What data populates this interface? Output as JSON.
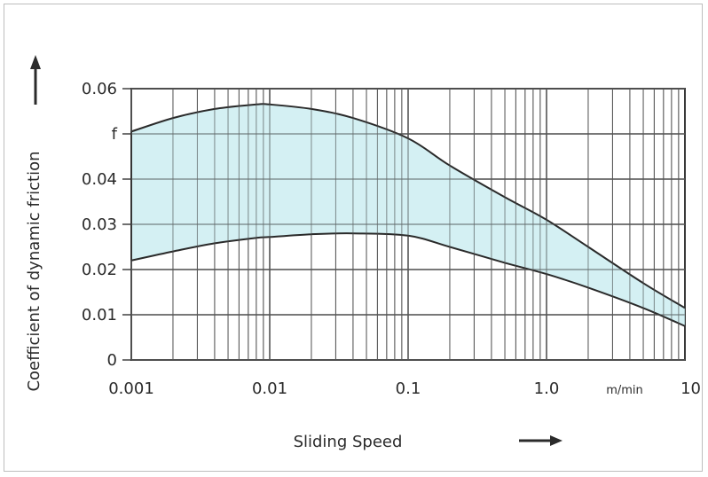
{
  "chart_data": {
    "type": "area",
    "x_scale": "log",
    "xlim": [
      0.001,
      10
    ],
    "ylim": [
      0,
      0.06
    ],
    "grid": true,
    "fill_color": "#c8ecef",
    "line_color": "#2a2a2a",
    "x_ticks": [
      {
        "value": 0.001,
        "label": "0.001"
      },
      {
        "value": 0.01,
        "label": "0.01"
      },
      {
        "value": 0.1,
        "label": "0.1"
      },
      {
        "value": 1,
        "label": "1.0"
      },
      {
        "value": 10,
        "label": "10"
      }
    ],
    "y_ticks": [
      {
        "value": 0,
        "label": "0"
      },
      {
        "value": 0.01,
        "label": "0.01"
      },
      {
        "value": 0.02,
        "label": "0.02"
      },
      {
        "value": 0.03,
        "label": "0.03"
      },
      {
        "value": 0.04,
        "label": "0.04"
      },
      {
        "value": 0.05,
        "label": "f"
      },
      {
        "value": 0.06,
        "label": "0.06"
      }
    ],
    "x_unit": "m/min",
    "xlabel": "Sliding Speed",
    "ylabel": "Coefficient of dynamic friction",
    "series": [
      {
        "role": "upper-bound",
        "x": [
          0.001,
          0.002,
          0.004,
          0.008,
          0.01,
          0.02,
          0.04,
          0.1,
          0.2,
          0.5,
          1,
          2,
          5,
          10
        ],
        "y": [
          0.0505,
          0.0535,
          0.0555,
          0.0565,
          0.0565,
          0.0555,
          0.0535,
          0.049,
          0.043,
          0.036,
          0.031,
          0.025,
          0.017,
          0.0115
        ]
      },
      {
        "role": "lower-bound",
        "x": [
          0.001,
          0.002,
          0.004,
          0.008,
          0.01,
          0.02,
          0.04,
          0.1,
          0.2,
          0.5,
          1,
          2,
          5,
          10
        ],
        "y": [
          0.022,
          0.024,
          0.0258,
          0.027,
          0.0272,
          0.0278,
          0.028,
          0.0275,
          0.025,
          0.0215,
          0.019,
          0.016,
          0.0115,
          0.0075
        ]
      }
    ]
  }
}
